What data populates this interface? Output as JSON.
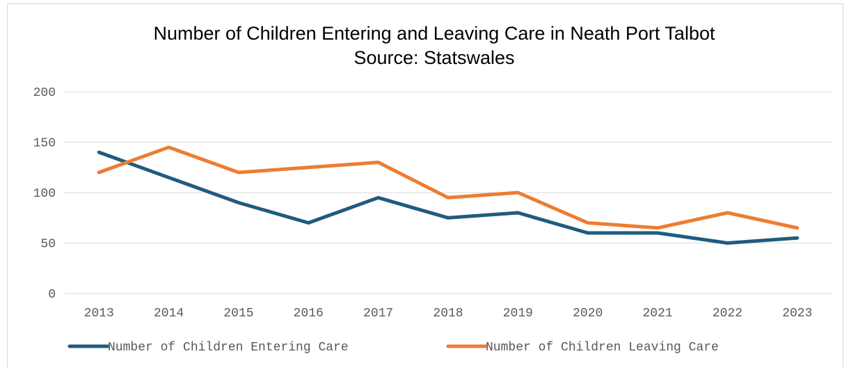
{
  "chart_data": {
    "type": "line",
    "title": "Number of Children Entering and Leaving Care in Neath Port Talbot",
    "subtitle": "Source: Statswales",
    "categories": [
      "2013",
      "2014",
      "2015",
      "2016",
      "2017",
      "2018",
      "2019",
      "2020",
      "2021",
      "2022",
      "2023"
    ],
    "series": [
      {
        "name": "Number of Children Entering Care",
        "color": "#1f5c7e",
        "values": [
          140,
          115,
          90,
          70,
          95,
          75,
          80,
          60,
          60,
          50,
          55
        ]
      },
      {
        "name": "Number of Children Leaving Care",
        "color": "#ed7d31",
        "values": [
          120,
          145,
          120,
          125,
          130,
          95,
          100,
          70,
          65,
          80,
          65
        ]
      }
    ],
    "ylim": [
      0,
      200
    ],
    "yticks": [
      0,
      50,
      100,
      150,
      200
    ],
    "grid": true,
    "legend_position": "bottom",
    "xlabel": "",
    "ylabel": ""
  }
}
